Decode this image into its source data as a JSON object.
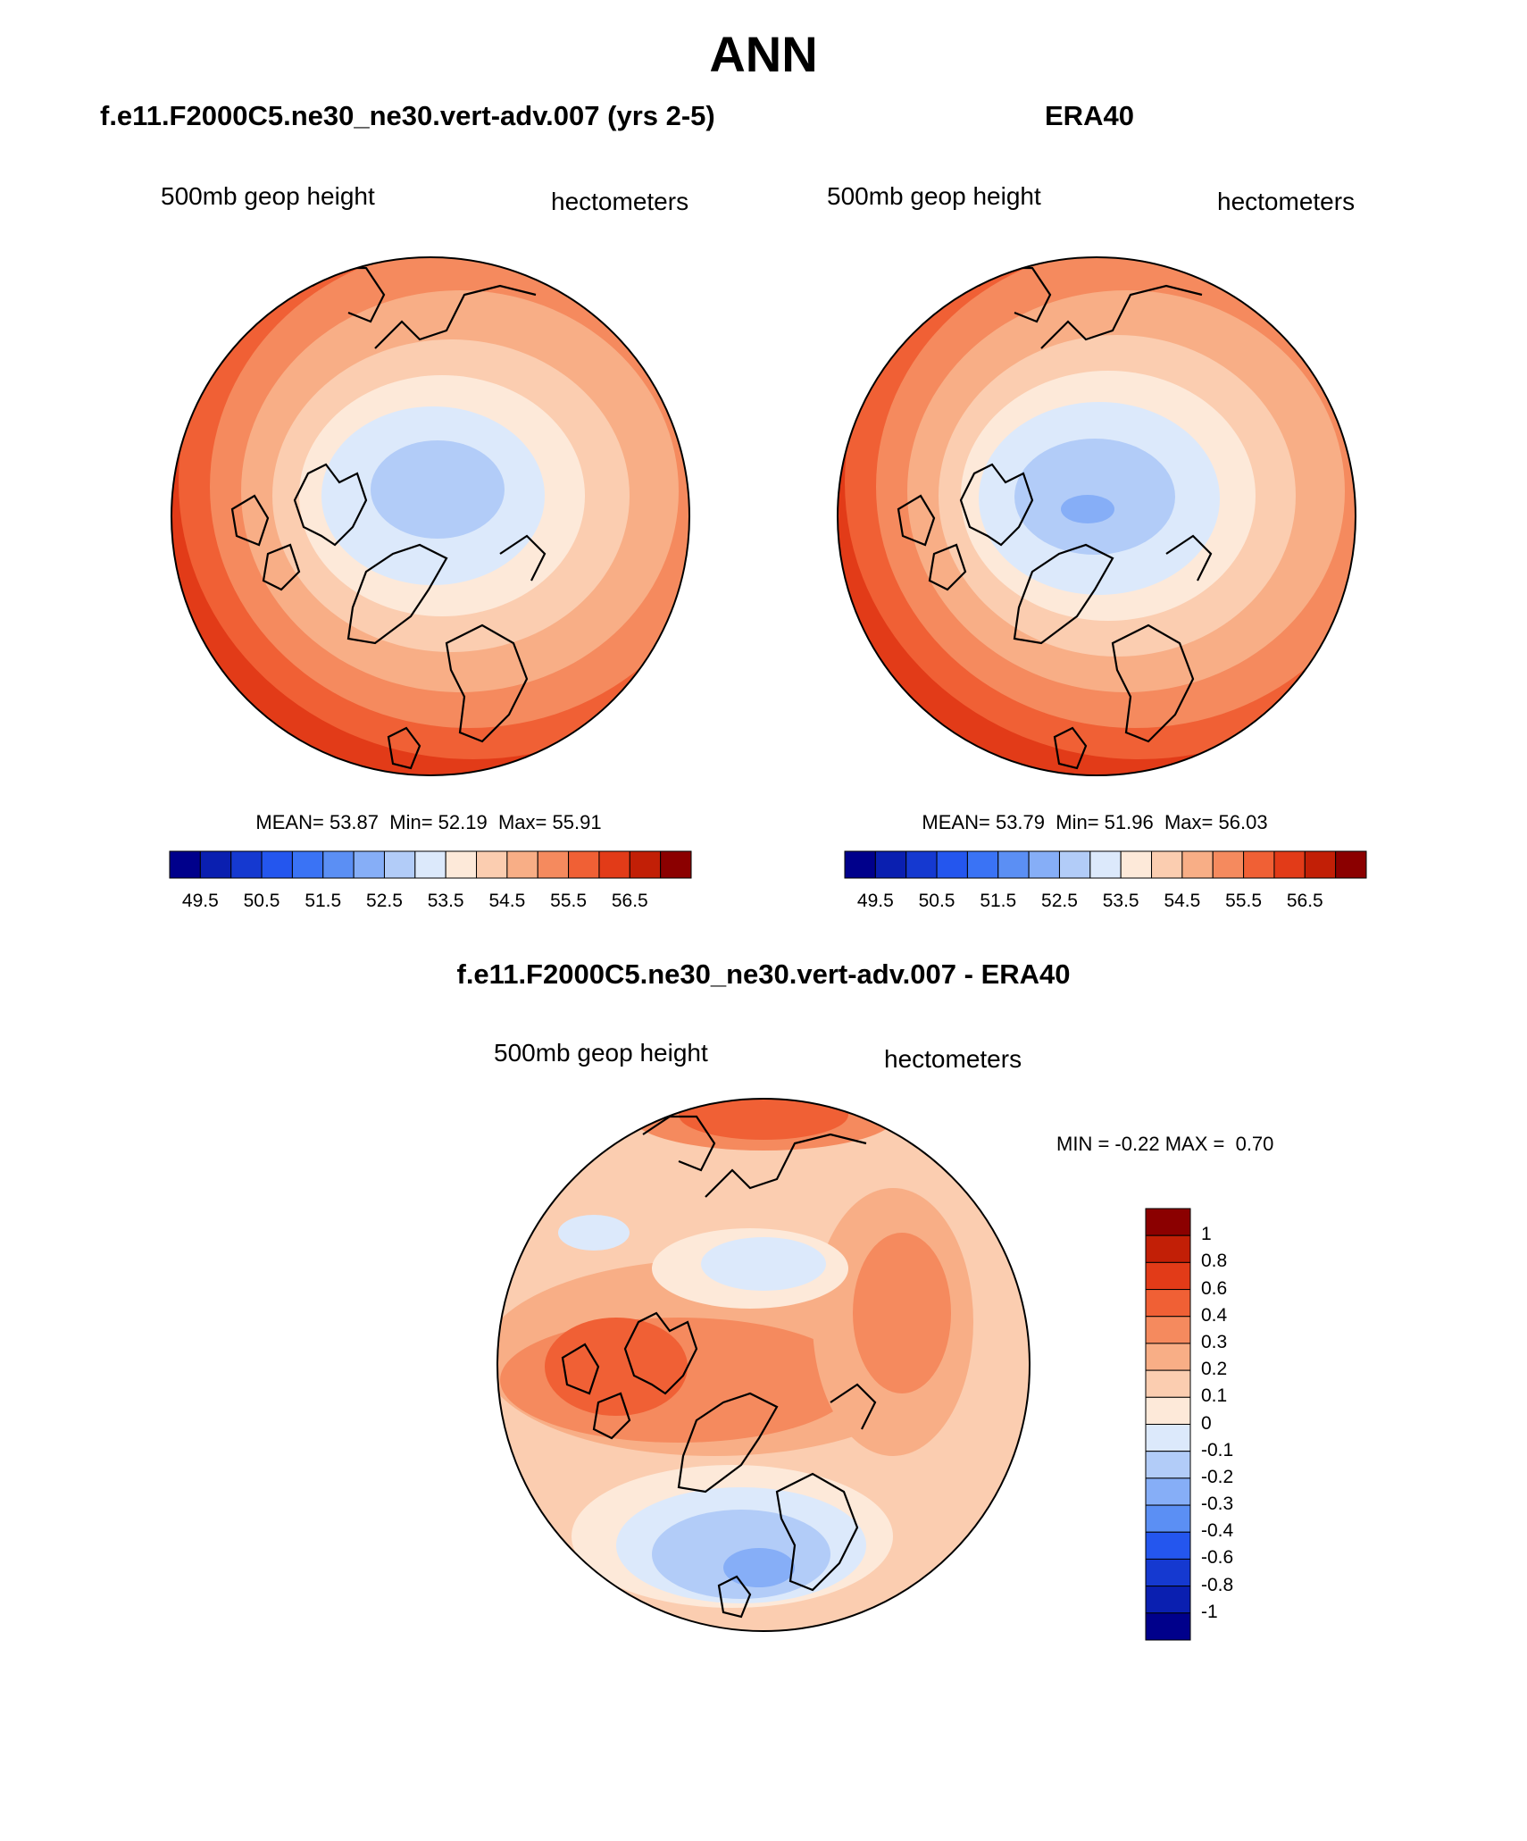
{
  "figure": {
    "title": "ANN",
    "panels": [
      {
        "id": "model",
        "title": "f.e11.F2000C5.ne30_ne30.vert-adv.007 (yrs 2-5)",
        "variable": "500mb geop height",
        "units": "hectometers",
        "stats": {
          "mean_label": "MEAN=",
          "mean": "53.87",
          "min_label": "Min=",
          "min": "52.19",
          "max_label": "Max=",
          "max": "55.91"
        }
      },
      {
        "id": "obs",
        "title": "ERA40",
        "variable": "500mb geop height",
        "units": "hectometers",
        "stats": {
          "mean_label": "MEAN=",
          "mean": "53.79",
          "min_label": "Min=",
          "min": "51.96",
          "max_label": "Max=",
          "max": "56.03"
        }
      },
      {
        "id": "diff",
        "title": "f.e11.F2000C5.ne30_ne30.vert-adv.007 - ERA40",
        "variable": "500mb geop height",
        "units": "hectometers",
        "minmax": {
          "min_label": "MIN =",
          "min": "-0.22",
          "max_label": "MAX =",
          "max": "0.70"
        }
      }
    ]
  },
  "colorbars": {
    "absolute": {
      "colors": [
        "#00008b",
        "#0a1fb0",
        "#1539d0",
        "#2456ee",
        "#3a73f5",
        "#5b8ff4",
        "#86aef7",
        "#b2ccf8",
        "#dce9fb",
        "#fde9d9",
        "#fbcdb0",
        "#f8ae86",
        "#f58a5e",
        "#f06035",
        "#e23b18",
        "#c21f06",
        "#8b0000"
      ],
      "labels": [
        "49.5",
        "50.5",
        "51.5",
        "52.5",
        "53.5",
        "54.5",
        "55.5",
        "56.5"
      ]
    },
    "difference": {
      "colors": [
        "#00008b",
        "#0a1fb0",
        "#1539d0",
        "#2456ee",
        "#5b8ff4",
        "#86aef7",
        "#b2ccf8",
        "#dce9fb",
        "#fde9d9",
        "#fbcdb0",
        "#f8ae86",
        "#f58a5e",
        "#f06035",
        "#e23b18",
        "#c21f06",
        "#8b0000"
      ],
      "labels": [
        "1",
        "0.8",
        "0.6",
        "0.4",
        "0.3",
        "0.2",
        "0.1",
        "0",
        "-0.1",
        "-0.2",
        "-0.3",
        "-0.4",
        "-0.6",
        "-0.8",
        "-1"
      ]
    }
  }
}
